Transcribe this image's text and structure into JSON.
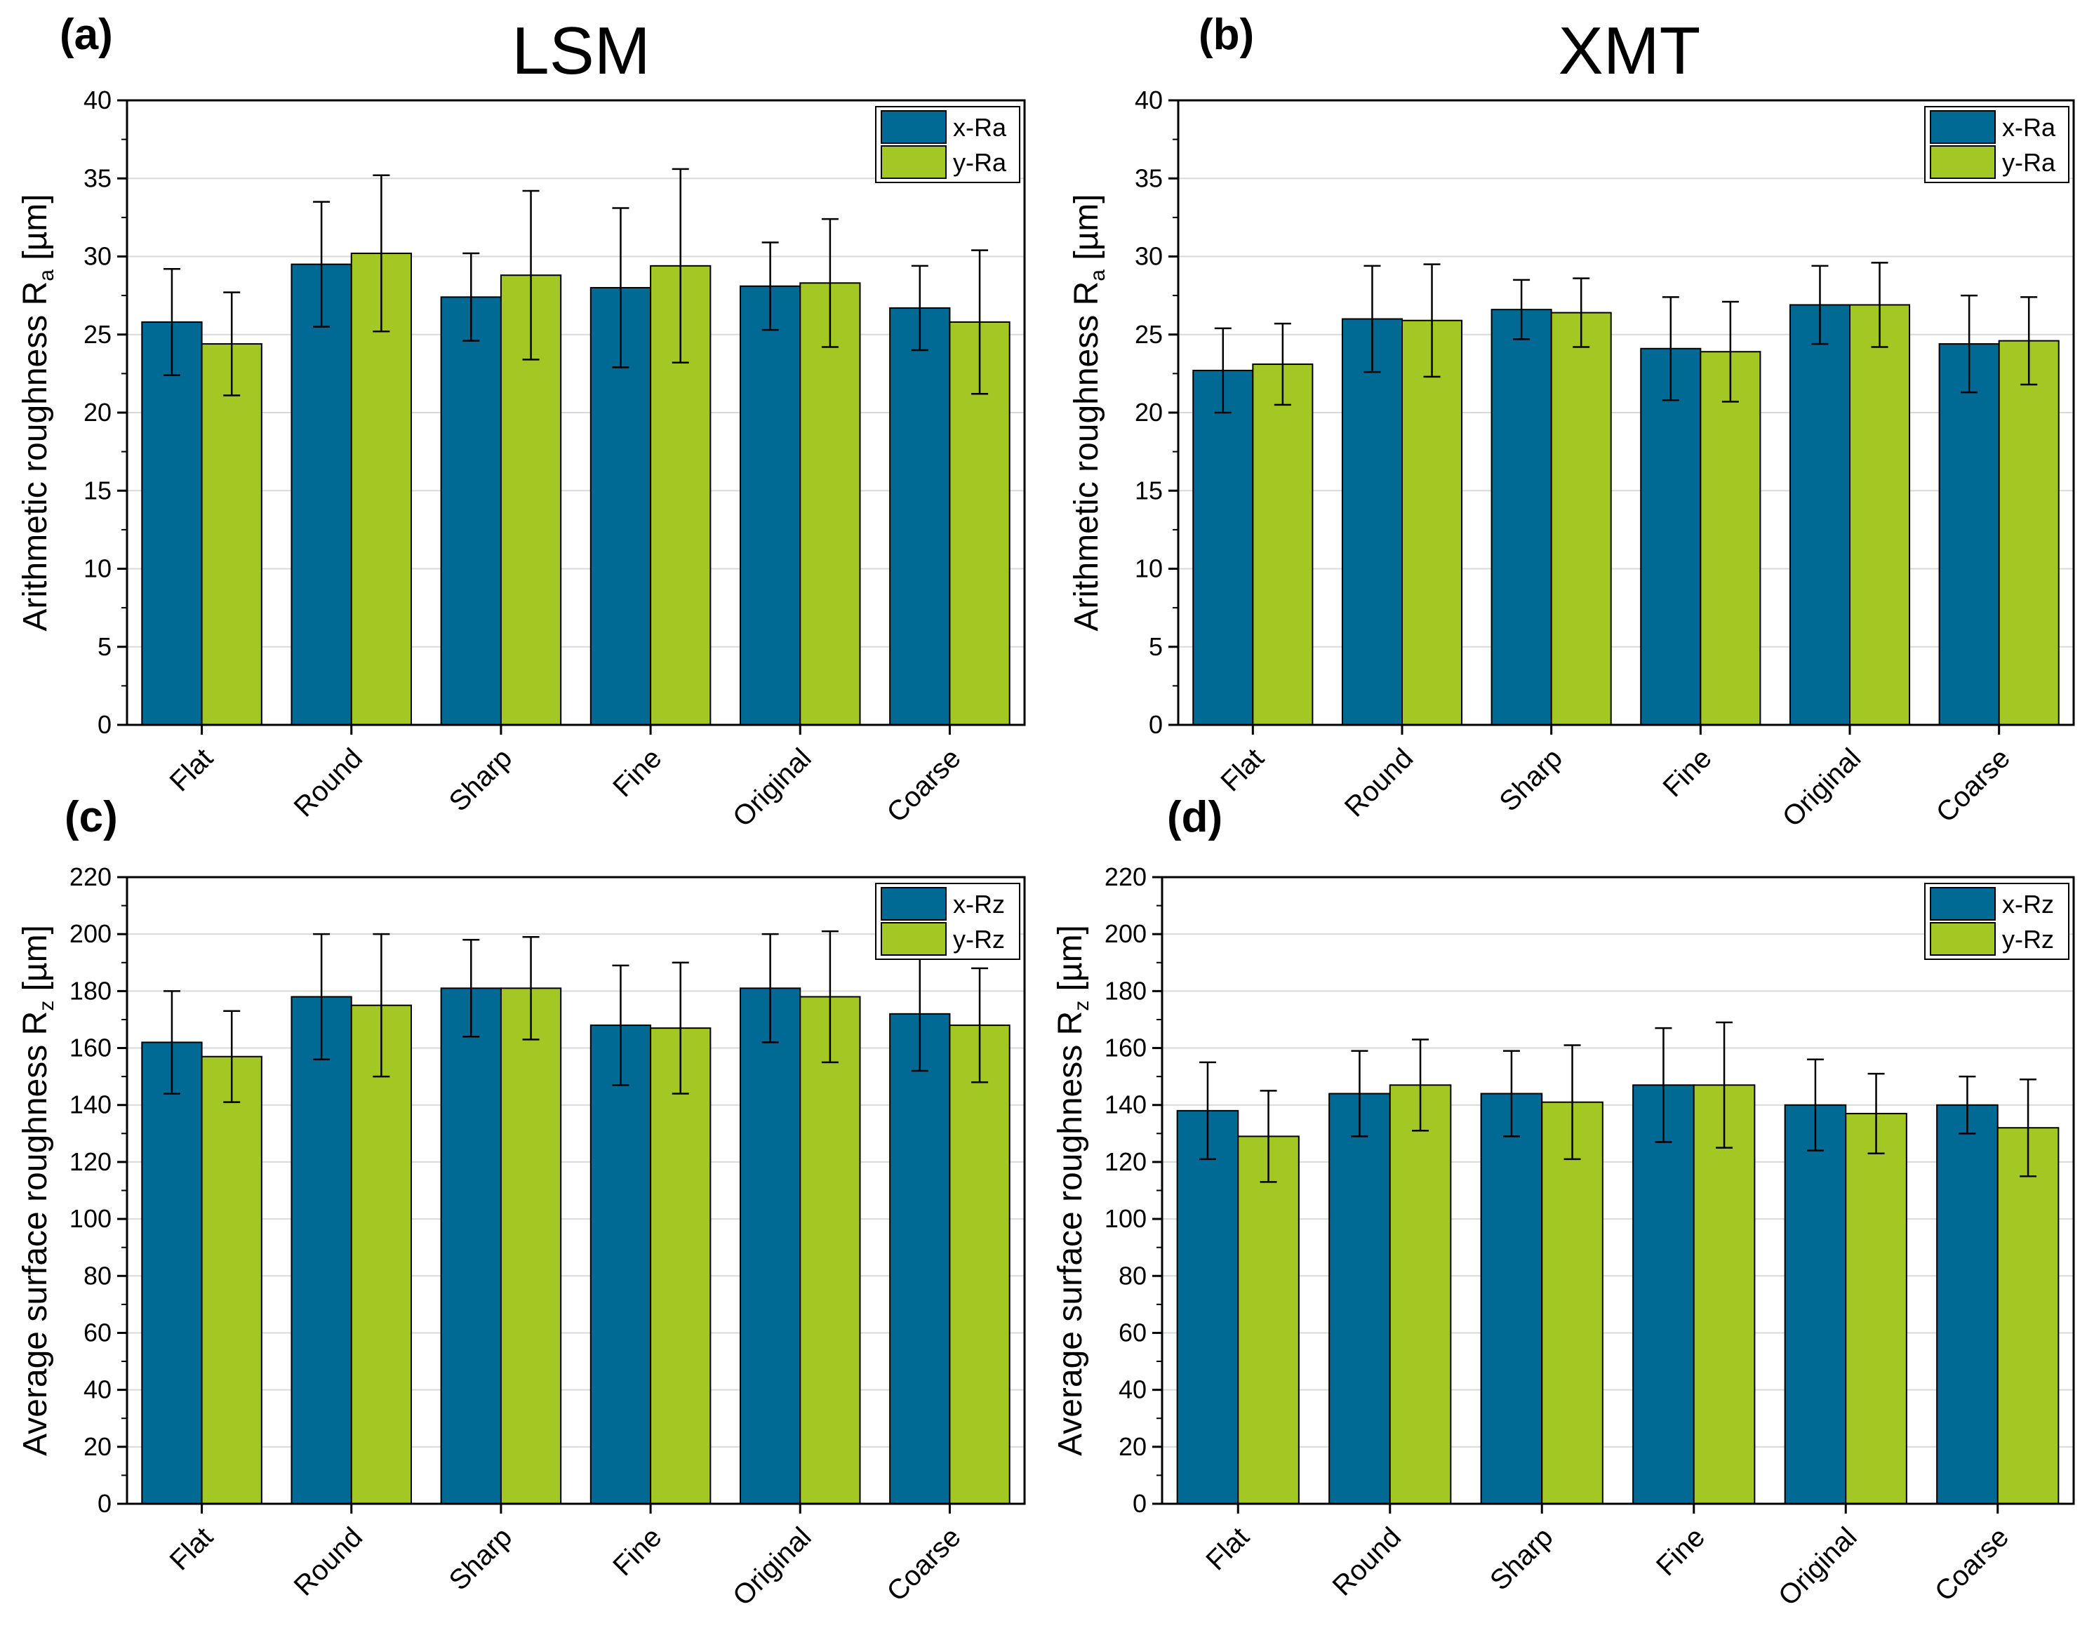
{
  "colors": {
    "x": "#006a94",
    "y": "#a3c723",
    "grid": "#d9d9d9"
  },
  "chart_data": [
    {
      "type": "bar",
      "panel": "(a)",
      "title": "LSM",
      "ylabel": "Arithmetic roughness R",
      "ylabel_sub": "a",
      "ylabel_unit": " [µm]",
      "ylim": [
        0,
        40
      ],
      "yticks": [
        0,
        5,
        10,
        15,
        20,
        25,
        30,
        35,
        40
      ],
      "categories": [
        "Flat",
        "Round",
        "Sharp",
        "Fine",
        "Original",
        "Coarse"
      ],
      "series": [
        {
          "name": "x-Ra",
          "values": [
            25.8,
            29.5,
            27.4,
            28.0,
            28.1,
            26.7
          ],
          "errors": [
            3.4,
            4.0,
            2.8,
            5.1,
            2.8,
            2.7
          ]
        },
        {
          "name": "y-Ra",
          "values": [
            24.4,
            30.2,
            28.8,
            29.4,
            28.3,
            25.8
          ],
          "errors": [
            3.3,
            5.0,
            5.4,
            6.2,
            4.1,
            4.6
          ]
        }
      ],
      "grid": true,
      "legend": "top-right"
    },
    {
      "type": "bar",
      "panel": "(b)",
      "title": "XMT",
      "ylabel": "Arithmetic roughness R",
      "ylabel_sub": "a",
      "ylabel_unit": " [µm]",
      "ylim": [
        0,
        40
      ],
      "yticks": [
        0,
        5,
        10,
        15,
        20,
        25,
        30,
        35,
        40
      ],
      "categories": [
        "Flat",
        "Round",
        "Sharp",
        "Fine",
        "Original",
        "Coarse"
      ],
      "series": [
        {
          "name": "x-Ra",
          "values": [
            22.7,
            26.0,
            26.6,
            24.1,
            26.9,
            24.4
          ],
          "errors": [
            2.7,
            3.4,
            1.9,
            3.3,
            2.5,
            3.1
          ]
        },
        {
          "name": "y-Ra",
          "values": [
            23.1,
            25.9,
            26.4,
            23.9,
            26.9,
            24.6
          ],
          "errors": [
            2.6,
            3.6,
            2.2,
            3.2,
            2.7,
            2.8
          ]
        }
      ],
      "grid": true,
      "legend": "top-right"
    },
    {
      "type": "bar",
      "panel": "(c)",
      "title": "",
      "ylabel": "Average surface roughness R",
      "ylabel_sub": "z",
      "ylabel_unit": " [µm]",
      "ylim": [
        0,
        220
      ],
      "yticks": [
        0,
        20,
        40,
        60,
        80,
        100,
        120,
        140,
        160,
        180,
        200,
        220
      ],
      "categories": [
        "Flat",
        "Round",
        "Sharp",
        "Fine",
        "Original",
        "Coarse"
      ],
      "series": [
        {
          "name": "x-Rz",
          "values": [
            162,
            178,
            181,
            168,
            181,
            172
          ],
          "errors": [
            18,
            22,
            17,
            21,
            19,
            20
          ]
        },
        {
          "name": "y-Rz",
          "values": [
            157,
            175,
            181,
            167,
            178,
            168
          ],
          "errors": [
            16,
            25,
            18,
            23,
            23,
            20
          ]
        }
      ],
      "grid": true,
      "legend": "top-right"
    },
    {
      "type": "bar",
      "panel": "(d)",
      "title": "",
      "ylabel": "Average surface roughness R",
      "ylabel_sub": "z",
      "ylabel_unit": " [µm]",
      "ylim": [
        0,
        220
      ],
      "yticks": [
        0,
        20,
        40,
        60,
        80,
        100,
        120,
        140,
        160,
        180,
        200,
        220
      ],
      "categories": [
        "Flat",
        "Round",
        "Sharp",
        "Fine",
        "Original",
        "Coarse"
      ],
      "series": [
        {
          "name": "x-Rz",
          "values": [
            138,
            144,
            144,
            147,
            140,
            140
          ],
          "errors": [
            17,
            15,
            15,
            20,
            16,
            10
          ]
        },
        {
          "name": "y-Rz",
          "values": [
            129,
            147,
            141,
            147,
            137,
            132
          ],
          "errors": [
            16,
            16,
            20,
            22,
            14,
            17
          ]
        }
      ],
      "grid": true,
      "legend": "top-right"
    }
  ]
}
